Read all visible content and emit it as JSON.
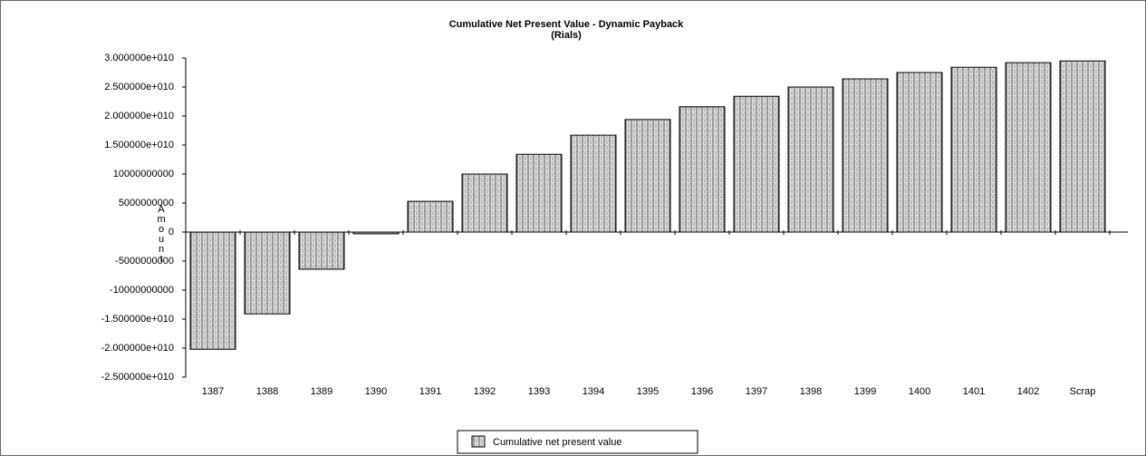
{
  "chart_data": {
    "type": "bar",
    "title": "Cumulative Net Present Value - Dynamic Payback",
    "subtitle": "(Rials)",
    "y_label": "Amount",
    "categories": [
      "1387",
      "1388",
      "1389",
      "1390",
      "1391",
      "1392",
      "1393",
      "1394",
      "1395",
      "1396",
      "1397",
      "1398",
      "1399",
      "1400",
      "1401",
      "1402",
      "Scrap"
    ],
    "series": [
      {
        "name": "Cumulative net present value",
        "color": "#e6e6e6",
        "values": [
          -20200000000,
          -14100000000,
          -6400000000,
          -300000000,
          5300000000,
          10000000000,
          13400000000,
          16700000000,
          19400000000,
          21600000000,
          23400000000,
          25000000000,
          26400000000,
          27500000000,
          28400000000,
          29200000000,
          29500000000
        ]
      }
    ],
    "ylim": [
      -25000000000,
      30000000000
    ],
    "yticks": [
      {
        "value": -25000000000,
        "label": "-2.500000e+010"
      },
      {
        "value": -20000000000,
        "label": "-2.000000e+010"
      },
      {
        "value": -15000000000,
        "label": "-1.500000e+010"
      },
      -10000000000,
      -5000000000,
      0,
      5000000000,
      10000000000,
      {
        "value": 15000000000,
        "label": "1.500000e+010"
      },
      {
        "value": 20000000000,
        "label": "2.000000e+010"
      },
      {
        "value": 25000000000,
        "label": "2.500000e+010"
      },
      {
        "value": 30000000000,
        "label": "3.000000e+010"
      }
    ],
    "legend": "bottom"
  }
}
